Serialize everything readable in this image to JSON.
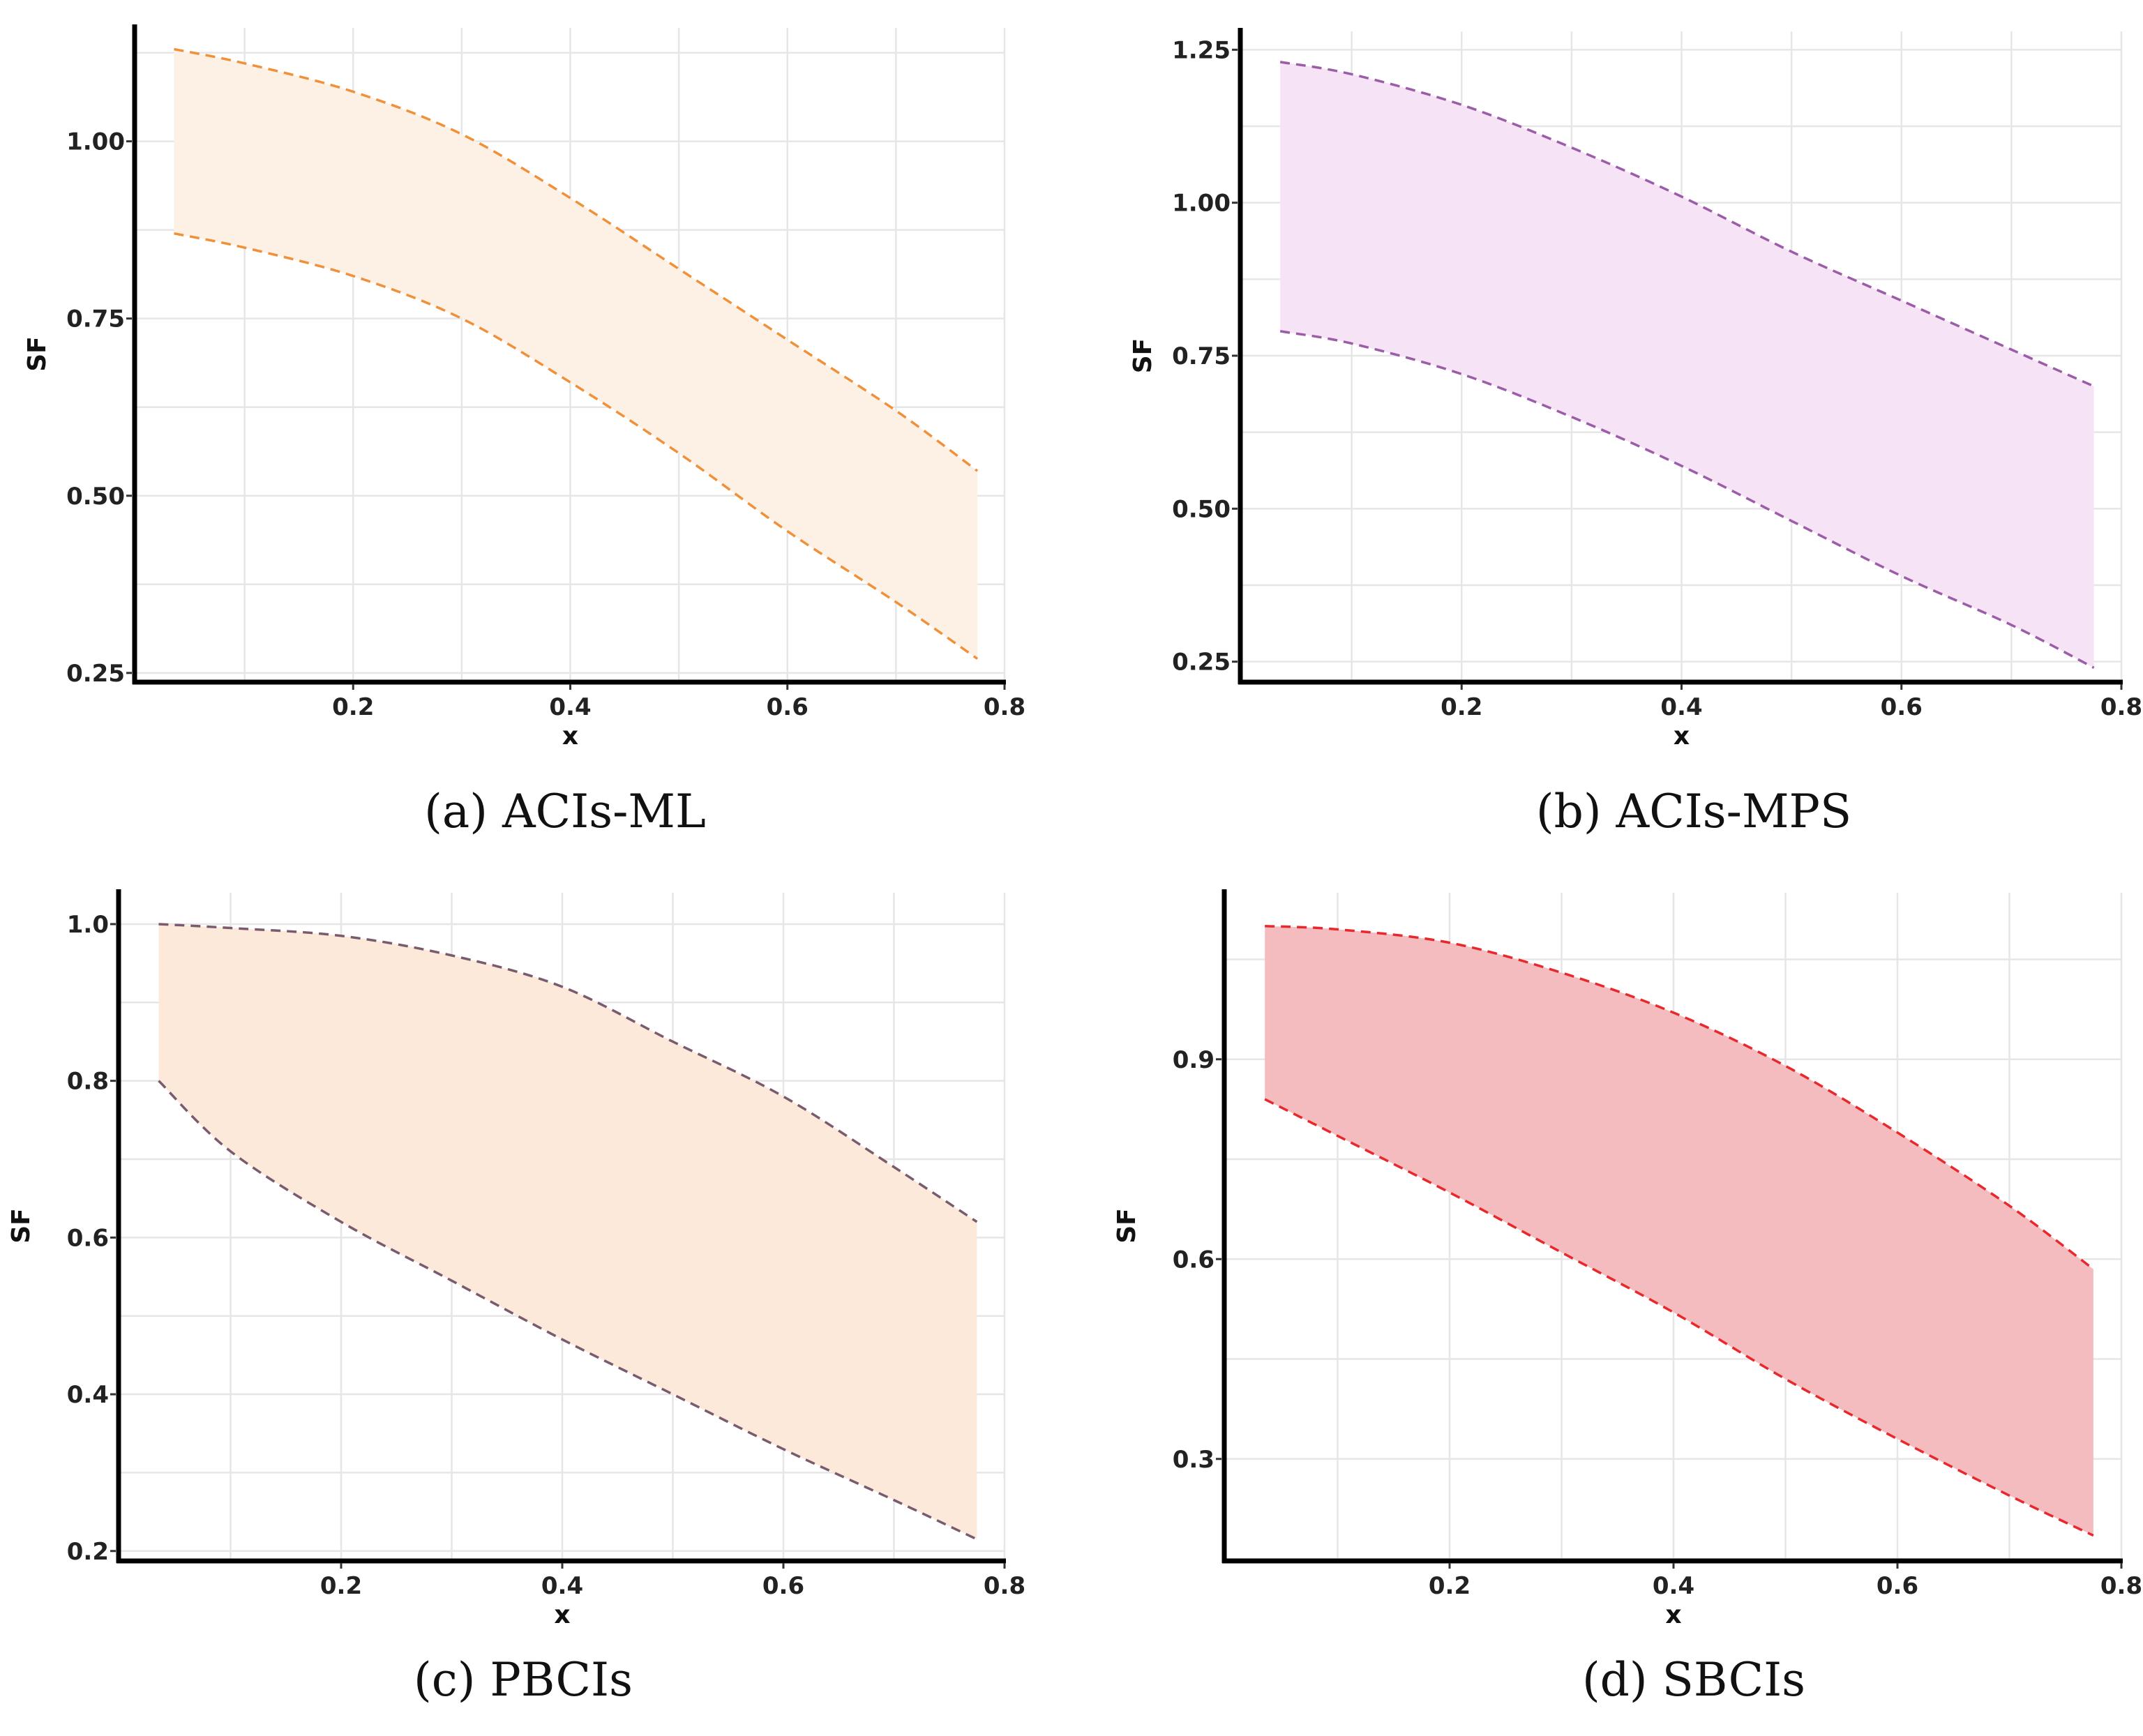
{
  "chart_data": [
    {
      "id": "a",
      "type": "area",
      "caption": "(a) ACIs-ML",
      "xlabel": "x",
      "ylabel": "SF",
      "xlim": [
        0.0,
        0.8
      ],
      "ylim": [
        0.24,
        1.16
      ],
      "xticks": [
        0.2,
        0.4,
        0.6,
        0.8
      ],
      "yticks": [
        0.25,
        0.5,
        0.75,
        1.0
      ],
      "ytick_labels": [
        "0.25",
        "0.50",
        "0.75",
        "1.00"
      ],
      "grid": true,
      "line_color": "#f0913a",
      "fill_color": "#fdf1e6",
      "x": [
        0.035,
        0.1,
        0.2,
        0.3,
        0.4,
        0.5,
        0.6,
        0.7,
        0.775
      ],
      "series": [
        {
          "name": "upper",
          "values": [
            1.13,
            1.11,
            1.07,
            1.01,
            0.92,
            0.82,
            0.72,
            0.62,
            0.535
          ]
        },
        {
          "name": "lower",
          "values": [
            0.87,
            0.85,
            0.81,
            0.75,
            0.66,
            0.56,
            0.45,
            0.35,
            0.27
          ]
        }
      ]
    },
    {
      "id": "b",
      "type": "area",
      "caption": "(b) ACIs-MPS",
      "xlabel": "x",
      "ylabel": "SF",
      "xlim": [
        0.0,
        0.8
      ],
      "ylim": [
        0.22,
        1.28
      ],
      "xticks": [
        0.2,
        0.4,
        0.6,
        0.8
      ],
      "yticks": [
        0.25,
        0.5,
        0.75,
        1.0,
        1.25
      ],
      "ytick_labels": [
        "0.25",
        "0.50",
        "0.75",
        "1.00",
        "1.25"
      ],
      "grid": true,
      "line_color": "#9b5ca8",
      "fill_color": "#f7e3f6",
      "x": [
        0.035,
        0.1,
        0.2,
        0.3,
        0.4,
        0.5,
        0.6,
        0.7,
        0.775
      ],
      "series": [
        {
          "name": "upper",
          "values": [
            1.23,
            1.21,
            1.16,
            1.09,
            1.01,
            0.92,
            0.84,
            0.76,
            0.7
          ]
        },
        {
          "name": "lower",
          "values": [
            0.79,
            0.77,
            0.72,
            0.65,
            0.57,
            0.48,
            0.39,
            0.31,
            0.24
          ]
        }
      ]
    },
    {
      "id": "c",
      "type": "area",
      "caption": "(c) PBCIs",
      "xlabel": "x",
      "ylabel": "SF",
      "xlim": [
        0.0,
        0.8
      ],
      "ylim": [
        0.19,
        1.04
      ],
      "xticks": [
        0.2,
        0.4,
        0.6,
        0.8
      ],
      "yticks": [
        0.2,
        0.4,
        0.6,
        0.8,
        1.0
      ],
      "ytick_labels": [
        "0.2",
        "0.4",
        "0.6",
        "0.8",
        "1.0"
      ],
      "grid": true,
      "line_color": "#7a5a6e",
      "fill_color": "#fde9d9",
      "x": [
        0.035,
        0.1,
        0.2,
        0.3,
        0.4,
        0.5,
        0.6,
        0.7,
        0.775
      ],
      "series": [
        {
          "name": "upper",
          "values": [
            1.0,
            0.995,
            0.985,
            0.96,
            0.92,
            0.85,
            0.78,
            0.69,
            0.62
          ]
        },
        {
          "name": "lower",
          "values": [
            0.8,
            0.71,
            0.62,
            0.545,
            0.47,
            0.4,
            0.33,
            0.265,
            0.215
          ]
        }
      ]
    },
    {
      "id": "d",
      "type": "area",
      "caption": "(d) SBCIs",
      "xlabel": "x",
      "ylabel": "SF",
      "xlim": [
        0.0,
        0.8
      ],
      "ylim": [
        0.15,
        1.15
      ],
      "xticks": [
        0.2,
        0.4,
        0.6,
        0.8
      ],
      "yticks": [
        0.3,
        0.6,
        0.9
      ],
      "ytick_labels": [
        "0.3",
        "0.6",
        "0.9"
      ],
      "grid": true,
      "line_color": "#e8282d",
      "fill_color": "#f4bcbe",
      "x": [
        0.035,
        0.1,
        0.2,
        0.3,
        0.4,
        0.5,
        0.6,
        0.7,
        0.775
      ],
      "series": [
        {
          "name": "upper",
          "values": [
            1.1,
            1.095,
            1.075,
            1.03,
            0.97,
            0.89,
            0.79,
            0.68,
            0.585
          ]
        },
        {
          "name": "lower",
          "values": [
            0.84,
            0.785,
            0.7,
            0.61,
            0.52,
            0.42,
            0.33,
            0.245,
            0.185
          ]
        }
      ]
    }
  ]
}
